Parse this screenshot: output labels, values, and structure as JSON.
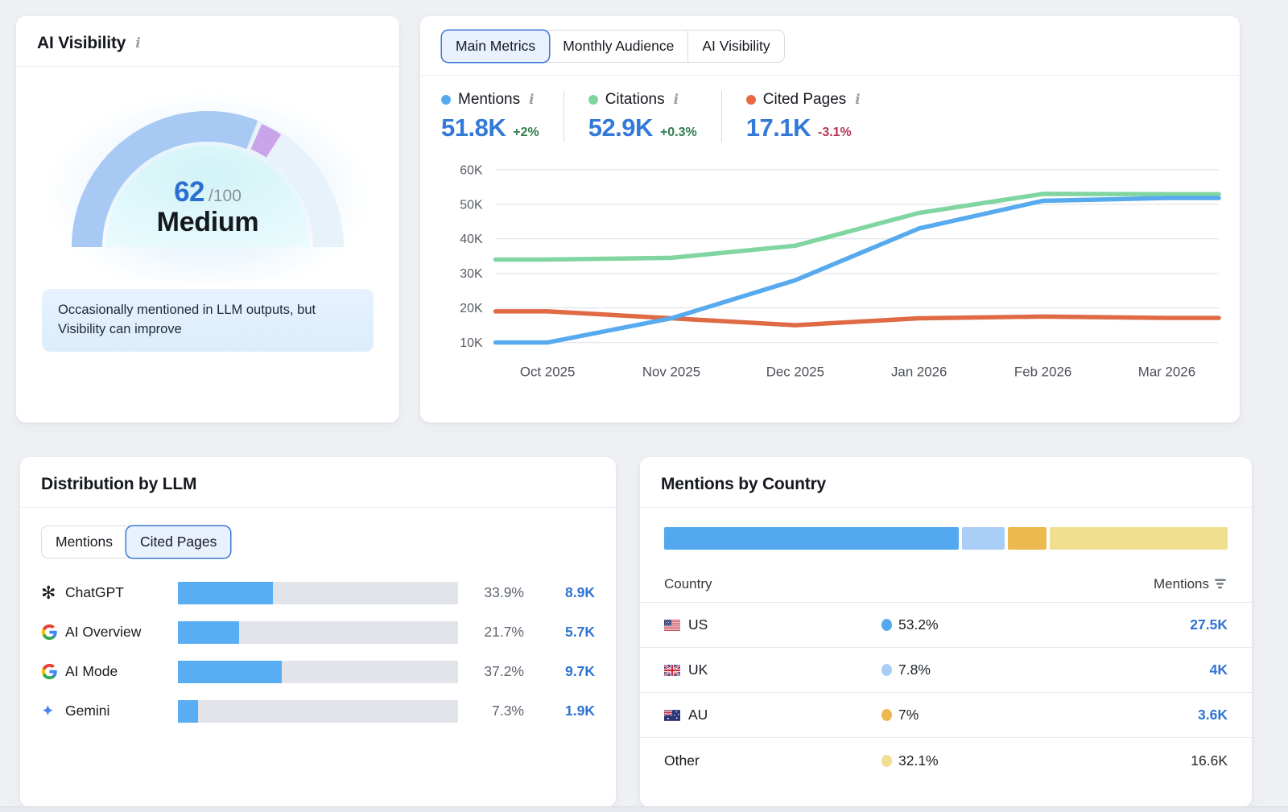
{
  "ai_visibility_card": {
    "title": "AI Visibility",
    "info_icon": "i",
    "gauge": {
      "score": 62,
      "max": "/100",
      "label": "Medium",
      "description": "Occasionally mentioned in LLM outputs, but Visibility can improve",
      "arc_color": "#a7c9f4",
      "marker_color": "#c9a4e9",
      "marker_gap": 1.2,
      "marker_span": 5.2,
      "track_color": "#e8f2fa"
    }
  },
  "metrics_card": {
    "tabs": [
      {
        "label": "Main Metrics",
        "active": true
      },
      {
        "label": "Monthly Audience",
        "active": false
      },
      {
        "label": "AI Visibility",
        "active": false
      }
    ],
    "metrics": [
      {
        "label": "Mentions",
        "value": "51.8K",
        "delta": "+2%",
        "delta_dir": "up",
        "color": "#54a9ee"
      },
      {
        "label": "Citations",
        "value": "52.9K",
        "delta": "+0.3%",
        "delta_dir": "up",
        "color": "#7fd4a0"
      },
      {
        "label": "Cited Pages",
        "value": "17.1K",
        "delta": "-3.1%",
        "delta_dir": "down",
        "color": "#e8683f"
      }
    ],
    "chart_data": {
      "type": "line",
      "x": [
        "Oct 2025",
        "Nov 2025",
        "Dec 2025",
        "Jan 2026",
        "Feb 2026",
        "Mar 2026"
      ],
      "series": [
        {
          "name": "Citations",
          "color": "#80d5a1",
          "values": [
            34000,
            34500,
            38000,
            47500,
            53000,
            52900
          ]
        },
        {
          "name": "Cited Pages",
          "color": "#df6a44",
          "values": [
            19000,
            17000,
            15000,
            17000,
            17500,
            17100
          ]
        },
        {
          "name": "Mentions",
          "color": "#57aaee",
          "values": [
            10000,
            17000,
            28000,
            43000,
            51000,
            51800
          ]
        }
      ],
      "ylim": [
        10000,
        60000
      ],
      "yticks": [
        {
          "value": 10000,
          "label": "10K"
        },
        {
          "value": 20000,
          "label": "20K"
        },
        {
          "value": 30000,
          "label": "30K"
        },
        {
          "value": 40000,
          "label": "40K"
        },
        {
          "value": 50000,
          "label": "50K"
        },
        {
          "value": 60000,
          "label": "60K"
        }
      ],
      "grid": true,
      "legend_position": "none",
      "edge_extension": true
    }
  },
  "llm_card": {
    "title": "Distribution by LLM",
    "tabs": [
      {
        "label": "Mentions",
        "active": false
      },
      {
        "label": "Cited Pages",
        "active": true
      }
    ],
    "bar_color": "#59aef3",
    "track_color": "#e1e4e9",
    "chart_data": {
      "type": "bar",
      "categories": [
        "ChatGPT",
        "AI Overview",
        "AI Mode",
        "Gemini"
      ],
      "values": [
        33.9,
        21.7,
        37.2,
        7.3
      ],
      "title": "Distribution by LLM — Cited Pages (%)"
    },
    "rows": [
      {
        "name": "ChatGPT",
        "icon": "chatgpt-icon",
        "percent": "33.9%",
        "percent_value": 33.9,
        "value": "8.9K"
      },
      {
        "name": "AI Overview",
        "icon": "google-g-icon",
        "percent": "21.7%",
        "percent_value": 21.7,
        "value": "5.7K"
      },
      {
        "name": "AI Mode",
        "icon": "google-g-icon",
        "percent": "37.2%",
        "percent_value": 37.2,
        "value": "9.7K"
      },
      {
        "name": "Gemini",
        "icon": "gemini-icon",
        "percent": "7.3%",
        "percent_value": 7.3,
        "value": "1.9K"
      }
    ]
  },
  "country_card": {
    "title": "Mentions by Country",
    "columns": {
      "country": "Country",
      "mentions": "Mentions"
    },
    "chart_data": {
      "type": "bar",
      "categories": [
        "US",
        "UK",
        "AU",
        "Other"
      ],
      "values": [
        53.2,
        7.8,
        7,
        32.1
      ],
      "title": "Mentions by Country (%)"
    },
    "segments": [
      {
        "name": "US",
        "percent": 53.2,
        "color": "#54a9ee"
      },
      {
        "name": "UK",
        "percent": 7.8,
        "color": "#a9cef5"
      },
      {
        "name": "AU",
        "percent": 7.0,
        "color": "#ecb94e"
      },
      {
        "name": "Other",
        "percent": 32.1,
        "color": "#f1df90"
      }
    ],
    "rows": [
      {
        "country": "US",
        "flag": "us",
        "percent": "53.2%",
        "color": "#54a9ee",
        "value": "27.5K",
        "value_link": true
      },
      {
        "country": "UK",
        "flag": "uk",
        "percent": "7.8%",
        "color": "#a9cef5",
        "value": "4K",
        "value_link": true
      },
      {
        "country": "AU",
        "flag": "au",
        "percent": "7%",
        "color": "#ecb94e",
        "value": "3.6K",
        "value_link": true
      },
      {
        "country": "Other",
        "flag": null,
        "percent": "32.1%",
        "color": "#f1df90",
        "value": "16.6K",
        "value_link": false
      }
    ]
  }
}
